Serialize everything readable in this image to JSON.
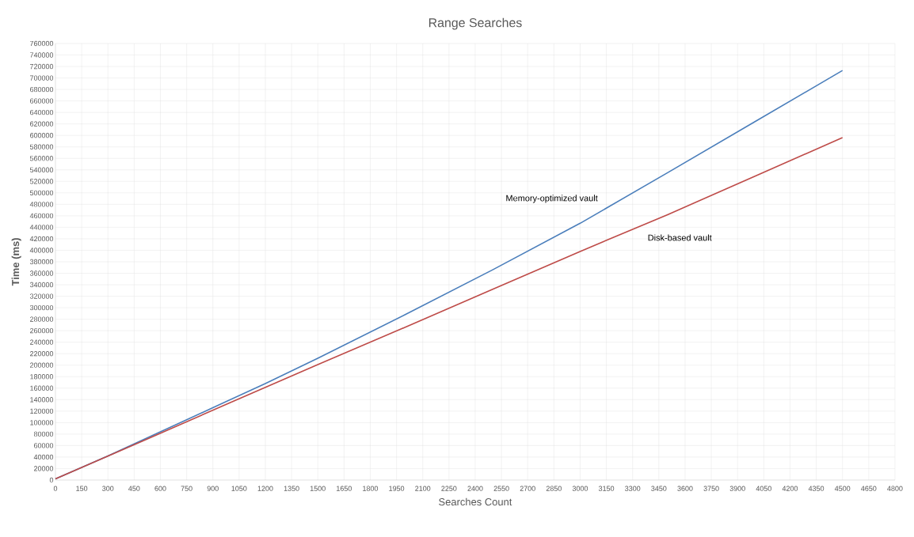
{
  "chart_data": {
    "type": "line",
    "title": "Range Searches",
    "xlabel": "Searches Count",
    "ylabel": "Time (ms)",
    "xlim": [
      0,
      4800
    ],
    "xticks": [
      0,
      150,
      300,
      450,
      600,
      750,
      900,
      1050,
      1200,
      1350,
      1500,
      1650,
      1800,
      1950,
      2100,
      2250,
      2400,
      2550,
      2700,
      2850,
      3000,
      3150,
      3300,
      3450,
      3600,
      3750,
      3900,
      4050,
      4200,
      4350,
      4500,
      4650,
      4800
    ],
    "ylim": [
      0,
      760000
    ],
    "yticks": [
      0,
      20000,
      40000,
      60000,
      80000,
      100000,
      120000,
      140000,
      160000,
      180000,
      200000,
      220000,
      240000,
      260000,
      280000,
      300000,
      320000,
      340000,
      360000,
      380000,
      400000,
      420000,
      440000,
      460000,
      480000,
      500000,
      520000,
      540000,
      560000,
      580000,
      600000,
      620000,
      640000,
      660000,
      680000,
      700000,
      720000,
      740000,
      760000
    ],
    "grid": true,
    "legend": false,
    "marker": "none",
    "line_style": "solid",
    "series": [
      {
        "name": "Memory-optimized vault",
        "color": "#4a7ebb",
        "x": [
          0,
          300,
          600,
          900,
          1200,
          1500,
          2000,
          2500,
          3000,
          3500,
          4000,
          4500
        ],
        "values": [
          2000,
          42000,
          84000,
          126000,
          168000,
          212000,
          288000,
          366000,
          447000,
          535000,
          624000,
          713000
        ]
      },
      {
        "name": "Disk-based vault",
        "color": "#be4b48",
        "x": [
          0,
          500,
          1000,
          1500,
          2000,
          2500,
          3000,
          3500,
          4000,
          4500
        ],
        "values": [
          2000,
          68000,
          135000,
          201000,
          266000,
          332000,
          398000,
          462000,
          529000,
          596000
        ]
      }
    ]
  }
}
